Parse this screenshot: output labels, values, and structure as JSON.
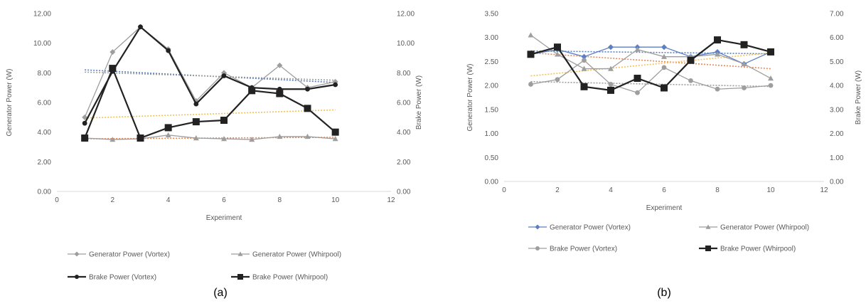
{
  "chart_data": [
    {
      "type": "line",
      "panel_label": "(a)",
      "xlabel": "Experiment",
      "ylabel": "Generator Power (W)",
      "y2label": "Brake Power (W)",
      "xlim": [
        0,
        12
      ],
      "ylim": [
        0,
        12
      ],
      "y2lim": [
        0,
        12
      ],
      "x_ticks": [
        "0",
        "2",
        "4",
        "6",
        "8",
        "10",
        "12"
      ],
      "y_ticks": [
        "0.00",
        "2.00",
        "4.00",
        "6.00",
        "8.00",
        "10.00",
        "12.00"
      ],
      "y2_ticks": [
        "0.00",
        "2.00",
        "4.00",
        "6.00",
        "8.00",
        "10.00",
        "12.00"
      ],
      "grid": false,
      "legend_position": "bottom",
      "x": [
        1,
        2,
        3,
        4,
        5,
        6,
        7,
        8,
        9,
        10
      ],
      "series": [
        {
          "name": "Generator Power (Vortex)",
          "axis": "left",
          "marker": "diamond",
          "color": "#9e9e9e",
          "values": [
            5.0,
            9.4,
            11.1,
            9.6,
            6.1,
            8.0,
            7.0,
            8.5,
            7.0,
            7.4
          ]
        },
        {
          "name": "Generator Power  (Whirpool)",
          "axis": "left",
          "marker": "triangle",
          "color": "#9e9e9e",
          "values": [
            3.6,
            3.5,
            3.55,
            3.8,
            3.6,
            3.55,
            3.5,
            3.7,
            3.7,
            3.55
          ]
        },
        {
          "name": "Brake Power (Vortex)",
          "axis": "right",
          "marker": "circle",
          "color": "#222222",
          "values": [
            4.6,
            8.1,
            11.1,
            9.5,
            5.9,
            7.8,
            7.0,
            6.9,
            6.9,
            7.2
          ]
        },
        {
          "name": "Brake Power (Whirpool)",
          "axis": "right",
          "marker": "square",
          "color": "#222222",
          "values": [
            3.6,
            8.3,
            3.6,
            4.3,
            4.7,
            4.8,
            6.8,
            6.6,
            5.6,
            4.0
          ]
        }
      ],
      "trendlines": [
        {
          "color": "#5b7fc4",
          "axis": "left",
          "from": [
            1,
            8.2
          ],
          "to": [
            10,
            7.35
          ]
        },
        {
          "color": "#9e9e9e",
          "axis": "left",
          "from": [
            1,
            8.05
          ],
          "to": [
            10,
            7.5
          ]
        },
        {
          "color": "#f2c25b",
          "axis": "left",
          "from": [
            1,
            4.95
          ],
          "to": [
            10,
            5.5
          ]
        },
        {
          "color": "#e08a5a",
          "axis": "left",
          "from": [
            1,
            3.55
          ],
          "to": [
            10,
            3.65
          ]
        }
      ]
    },
    {
      "type": "line",
      "panel_label": "(b)",
      "xlabel": "Experiment",
      "ylabel": "Generator Power (W)",
      "y2label": "Brake Power (W)",
      "xlim": [
        0,
        12
      ],
      "ylim": [
        0,
        3.5
      ],
      "y2lim": [
        0,
        7
      ],
      "x_ticks": [
        "0",
        "2",
        "4",
        "6",
        "8",
        "10",
        "12"
      ],
      "y_ticks": [
        "0.00",
        "0.50",
        "1.00",
        "1.50",
        "2.00",
        "2.50",
        "3.00",
        "3.50"
      ],
      "y2_ticks": [
        "0.00",
        "1.00",
        "2.00",
        "3.00",
        "4.00",
        "5.00",
        "6.00",
        "7.00"
      ],
      "grid": false,
      "legend_position": "bottom",
      "x": [
        1,
        2,
        3,
        4,
        5,
        6,
        7,
        8,
        9,
        10
      ],
      "series": [
        {
          "name": "Generator Power (Vortex)",
          "axis": "left",
          "marker": "diamond",
          "color": "#5b7fc4",
          "values": [
            2.65,
            2.75,
            2.6,
            2.8,
            2.8,
            2.8,
            2.6,
            2.7,
            2.45,
            2.7
          ]
        },
        {
          "name": "Generator Power  (Whirpool)",
          "axis": "left",
          "marker": "triangle",
          "color": "#9e9e9e",
          "values": [
            3.05,
            2.65,
            2.35,
            2.35,
            2.75,
            2.6,
            2.6,
            2.65,
            2.45,
            2.15
          ]
        },
        {
          "name": "Brake Power (Vortex)",
          "axis": "right",
          "marker": "circle",
          "color": "#9e9e9e",
          "values": [
            4.05,
            4.25,
            5.05,
            4.05,
            3.7,
            4.75,
            4.2,
            3.85,
            3.9,
            4.0
          ]
        },
        {
          "name": "Brake Power (Whirpool)",
          "axis": "right",
          "marker": "square",
          "color": "#222222",
          "values": [
            5.3,
            5.6,
            3.95,
            3.8,
            4.3,
            3.9,
            5.05,
            5.9,
            5.7,
            5.4
          ]
        }
      ],
      "trendlines": [
        {
          "color": "#5b7fc4",
          "axis": "left",
          "from": [
            1,
            2.72
          ],
          "to": [
            10,
            2.66
          ]
        },
        {
          "color": "#e08a5a",
          "axis": "left",
          "from": [
            1,
            2.68
          ],
          "to": [
            10,
            2.35
          ]
        },
        {
          "color": "#f2c25b",
          "axis": "left",
          "from": [
            1,
            2.2
          ],
          "to": [
            10,
            2.68
          ]
        },
        {
          "color": "#9e9e9e",
          "axis": "left",
          "from": [
            1,
            2.08
          ],
          "to": [
            10,
            1.98
          ]
        }
      ]
    }
  ]
}
